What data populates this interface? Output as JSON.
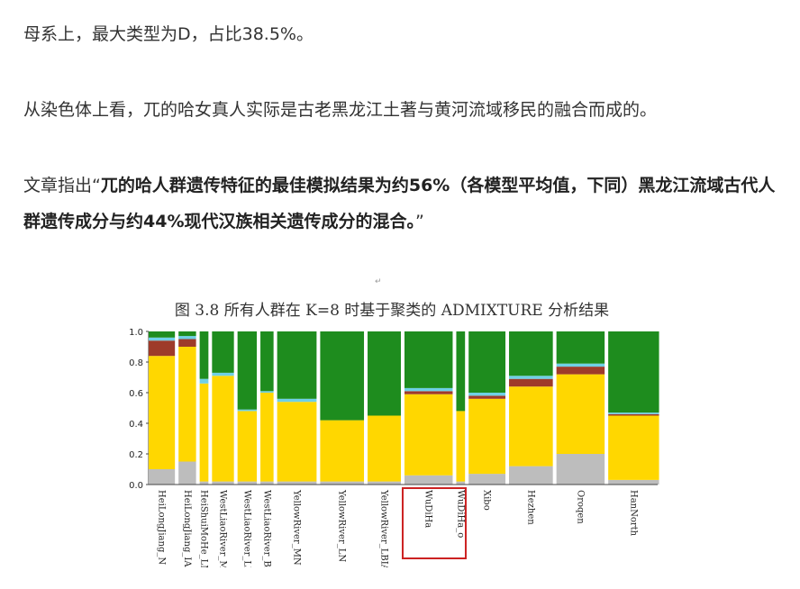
{
  "article": {
    "para1": "母系上，最大类型为D，占比38.5%。",
    "para2": "从染色体上看，兀的哈女真人实际是古老黑龙江土著与黄河流域移民的融合而成的。",
    "para3_pre": "文章指出“",
    "para3_bold": "兀的哈人群遗传特征的最佳模拟结果为约56%（各模型平均值，下同）黑龙江流域古代人群遗传成分与约44%现代汉族相关遗传成分的混合。",
    "para3_post": "”"
  },
  "figure": {
    "marker": "↵",
    "title": "图 3.8  所有人群在 K=8 时基于聚类的 ADMIXTURE 分析结果",
    "highlight_color": "#cc2222"
  },
  "chart_data": {
    "type": "bar",
    "title": "图 3.8  所有人群在 K=8 时基于聚类的 ADMIXTURE 分析结果",
    "ylim": [
      0,
      1
    ],
    "yticks": [
      "1.0",
      "0.8",
      "0.6",
      "0.4",
      "0.2",
      "0.0"
    ],
    "colors": {
      "grey": "#bdbdbd",
      "yellow": "#ffd700",
      "green": "#1e8c1e",
      "brown": "#9e3b2a",
      "blue": "#1a2fa0",
      "cyan": "#6fd0e6"
    },
    "populations": [
      {
        "name": "HeiLongJiang_N",
        "grey": 0.1,
        "yellow": 0.74,
        "brown": 0.1,
        "cyan": 0.02
      },
      {
        "name": "HeiLongJiang_IA",
        "grey": 0.15,
        "yellow": 0.75,
        "brown": 0.05,
        "cyan": 0.02
      },
      {
        "name": "HeiShuiMoHe_LM",
        "grey": 0.02,
        "yellow": 0.64,
        "cyan": 0.03
      },
      {
        "name": "WestLiaoRiver_MN",
        "grey": 0.02,
        "yellow": 0.69,
        "cyan": 0.02
      },
      {
        "name": "WestLiaoRiver_LN",
        "grey": 0.02,
        "yellow": 0.46,
        "cyan": 0.01
      },
      {
        "name": "WestLiaoRiver_BA",
        "grey": 0.02,
        "yellow": 0.58,
        "cyan": 0.01
      },
      {
        "name": "YellowRiver_MN",
        "grey": 0.02,
        "yellow": 0.52,
        "cyan": 0.02
      },
      {
        "name": "YellowRiver_LN",
        "grey": 0.02,
        "yellow": 0.4,
        "cyan": 0.0
      },
      {
        "name": "YellowRiver_LBIA",
        "grey": 0.02,
        "yellow": 0.43,
        "cyan": 0.0
      },
      {
        "name": "WuDiHa",
        "grey": 0.06,
        "yellow": 0.53,
        "brown": 0.02,
        "cyan": 0.02
      },
      {
        "name": "WuDiHa_o",
        "grey": 0.02,
        "yellow": 0.46,
        "cyan": 0.0
      },
      {
        "name": "Xibo",
        "grey": 0.07,
        "yellow": 0.49,
        "brown": 0.02,
        "cyan": 0.02
      },
      {
        "name": "Hezhen",
        "grey": 0.12,
        "yellow": 0.52,
        "brown": 0.05,
        "cyan": 0.02
      },
      {
        "name": "Oroqen",
        "grey": 0.2,
        "yellow": 0.52,
        "brown": 0.05,
        "cyan": 0.02
      },
      {
        "name": "HanNorth",
        "grey": 0.03,
        "yellow": 0.42,
        "brown": 0.01,
        "cyan": 0.01
      }
    ],
    "highlighted": [
      "WuDiHa",
      "WuDiHa_o"
    ]
  }
}
